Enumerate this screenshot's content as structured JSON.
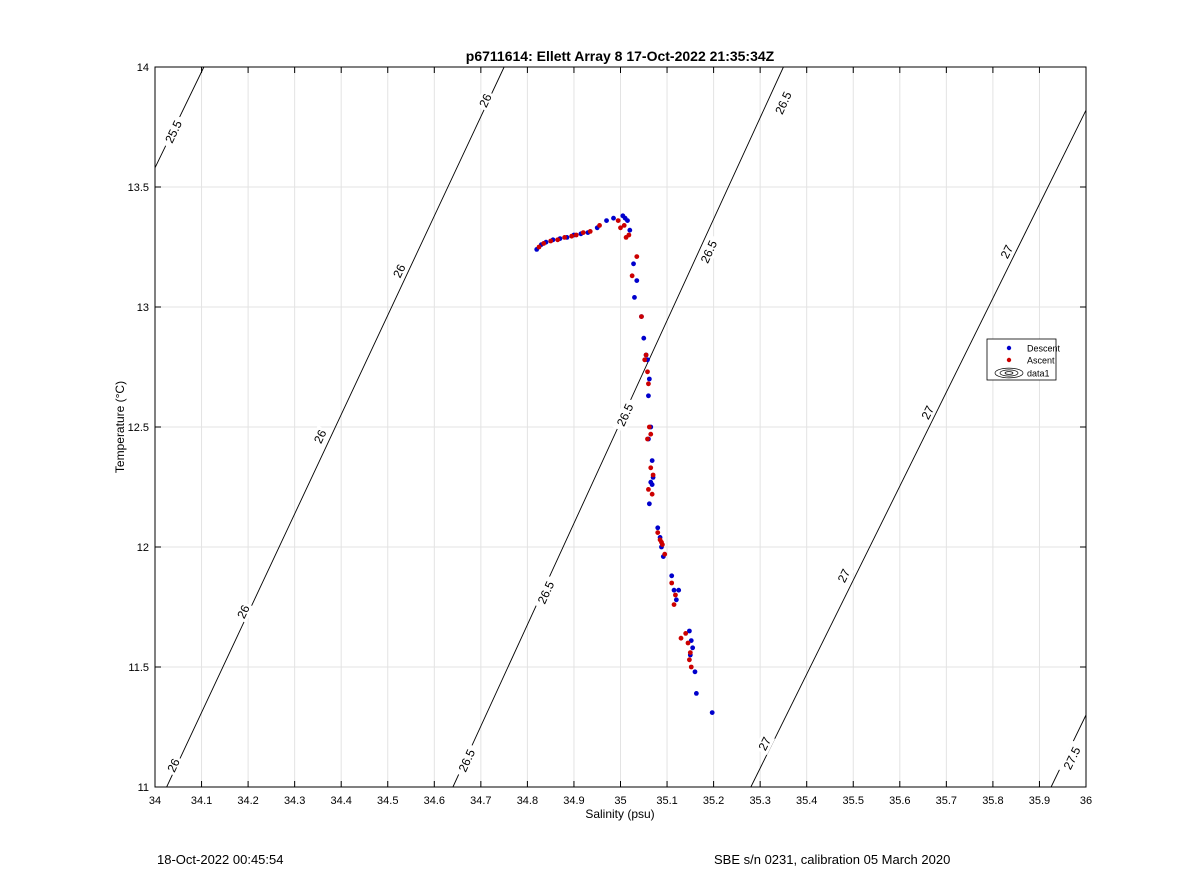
{
  "chart_data": {
    "type": "scatter",
    "title": "p6711614: Ellett Array 8 17-Oct-2022 21:35:34Z",
    "xlabel": "Salinity (psu)",
    "ylabel": "Temperature (°C)",
    "xlim": [
      34,
      36
    ],
    "ylim": [
      11,
      14
    ],
    "xticks": [
      "34",
      "34.1",
      "34.2",
      "34.3",
      "34.4",
      "34.5",
      "34.6",
      "34.7",
      "34.8",
      "34.9",
      "35",
      "35.1",
      "35.2",
      "35.3",
      "35.4",
      "35.5",
      "35.6",
      "35.7",
      "35.8",
      "35.9",
      "36"
    ],
    "yticks": [
      "11",
      "11.5",
      "12",
      "12.5",
      "13",
      "13.5",
      "14"
    ],
    "grid": true,
    "legend_position": "right",
    "legend": [
      "Descent",
      "Ascent",
      "data1"
    ],
    "colors": {
      "descent": "#0000cc",
      "ascent": "#cc0000",
      "contour": "#000000",
      "grid": "#e3e3e3"
    },
    "series": [
      {
        "name": "Descent",
        "x": [
          34.82,
          34.83,
          34.84,
          34.855,
          34.87,
          34.885,
          34.9,
          34.915,
          34.93,
          34.95,
          34.97,
          34.985,
          35.005,
          35.01,
          35.015,
          35.02,
          35.028,
          35.03,
          35.035,
          35.045,
          35.05,
          35.055,
          35.058,
          35.06,
          35.062,
          35.065,
          35.06,
          35.068,
          35.07,
          35.065,
          35.068,
          35.062,
          35.08,
          35.085,
          35.088,
          35.092,
          35.11,
          35.115,
          35.12,
          35.125,
          35.148,
          35.152,
          35.15,
          35.155,
          35.16,
          35.163,
          35.197
        ],
        "y": [
          13.24,
          13.26,
          13.27,
          13.28,
          13.285,
          13.29,
          13.3,
          13.305,
          13.31,
          13.33,
          13.36,
          13.37,
          13.38,
          13.37,
          13.36,
          13.32,
          13.18,
          13.04,
          13.11,
          12.96,
          12.87,
          12.8,
          12.78,
          12.63,
          12.7,
          12.5,
          12.45,
          12.36,
          12.29,
          12.27,
          12.26,
          12.18,
          12.08,
          12.04,
          12.0,
          11.96,
          11.88,
          11.82,
          11.78,
          11.82,
          11.65,
          11.61,
          11.55,
          11.58,
          11.48,
          11.39,
          11.31
        ]
      },
      {
        "name": "Ascent",
        "x": [
          34.825,
          34.835,
          34.85,
          34.865,
          34.88,
          34.895,
          34.905,
          34.92,
          34.935,
          34.955,
          34.995,
          35.0,
          35.008,
          35.012,
          35.018,
          35.025,
          35.035,
          35.045,
          35.052,
          35.055,
          35.058,
          35.06,
          35.062,
          35.065,
          35.058,
          35.065,
          35.07,
          35.06,
          35.068,
          35.08,
          35.085,
          35.088,
          35.09,
          35.095,
          35.11,
          35.115,
          35.118,
          35.13,
          35.14,
          35.145,
          35.15,
          35.148,
          35.152
        ],
        "y": [
          13.25,
          13.265,
          13.275,
          13.28,
          13.29,
          13.295,
          13.3,
          13.31,
          13.315,
          13.34,
          13.36,
          13.33,
          13.34,
          13.29,
          13.3,
          13.13,
          13.21,
          12.96,
          12.78,
          12.8,
          12.73,
          12.68,
          12.5,
          12.47,
          12.45,
          12.33,
          12.3,
          12.24,
          12.22,
          12.06,
          12.03,
          12.02,
          12.01,
          11.97,
          11.85,
          11.76,
          11.8,
          11.62,
          11.64,
          11.6,
          11.56,
          11.53,
          11.5
        ]
      }
    ],
    "contours": [
      {
        "label": "25.5",
        "points": [
          [
            34.0,
            13.58
          ],
          [
            34.105,
            14.0
          ]
        ],
        "label_at": [
          [
            34.04,
            13.73
          ]
        ]
      },
      {
        "label": "26",
        "points": [
          [
            34.025,
            11.0
          ],
          [
            34.75,
            14.0
          ]
        ],
        "label_at": [
          [
            34.04,
            11.09
          ],
          [
            34.19,
            11.73
          ],
          [
            34.355,
            12.46
          ],
          [
            34.525,
            13.15
          ],
          [
            34.71,
            13.86
          ]
        ]
      },
      {
        "label": "26.5",
        "points": [
          [
            34.64,
            11.0
          ],
          [
            35.35,
            14.0
          ]
        ],
        "label_at": [
          [
            34.67,
            11.11
          ],
          [
            34.84,
            11.81
          ],
          [
            35.01,
            12.55
          ],
          [
            35.19,
            13.23
          ],
          [
            35.35,
            13.85
          ]
        ]
      },
      {
        "label": "27",
        "points": [
          [
            35.28,
            11.0
          ],
          [
            36.0,
            13.82
          ]
        ],
        "label_at": [
          [
            35.31,
            11.18
          ],
          [
            35.48,
            11.88
          ],
          [
            35.66,
            12.56
          ],
          [
            35.83,
            13.23
          ]
        ]
      },
      {
        "label": "27.5",
        "points": [
          [
            35.925,
            11.0
          ],
          [
            36.0,
            11.3
          ]
        ],
        "label_at": [
          [
            35.97,
            11.12
          ]
        ]
      }
    ]
  },
  "footer": {
    "timestamp": "18-Oct-2022 00:45:54",
    "calibration": "SBE s/n 0231, calibration 05 March 2020"
  }
}
